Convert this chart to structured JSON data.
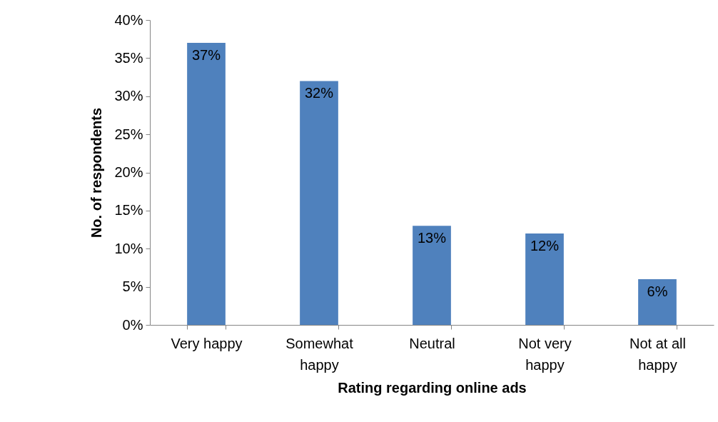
{
  "chart_data": {
    "type": "bar",
    "xlabel": "Rating regarding online ads",
    "ylabel": "No. of respondents",
    "categories": [
      "Very happy",
      "Somewhat happy",
      "Neutral",
      "Not very happy",
      "Not at all happy"
    ],
    "values": [
      37,
      32,
      13,
      12,
      6
    ],
    "value_labels": [
      "37%",
      "32%",
      "13%",
      "12%",
      "6%"
    ],
    "color": "#4f81bd",
    "ylim": [
      0,
      40
    ],
    "yticks": [
      {
        "value": 0,
        "label": "0%"
      },
      {
        "value": 5,
        "label": "5%"
      },
      {
        "value": 10,
        "label": "10%"
      },
      {
        "value": 15,
        "label": "15%"
      },
      {
        "value": 20,
        "label": "20%"
      },
      {
        "value": 25,
        "label": "25%"
      },
      {
        "value": 30,
        "label": "30%"
      },
      {
        "value": 35,
        "label": "35%"
      },
      {
        "value": 40,
        "label": "40%"
      }
    ]
  }
}
